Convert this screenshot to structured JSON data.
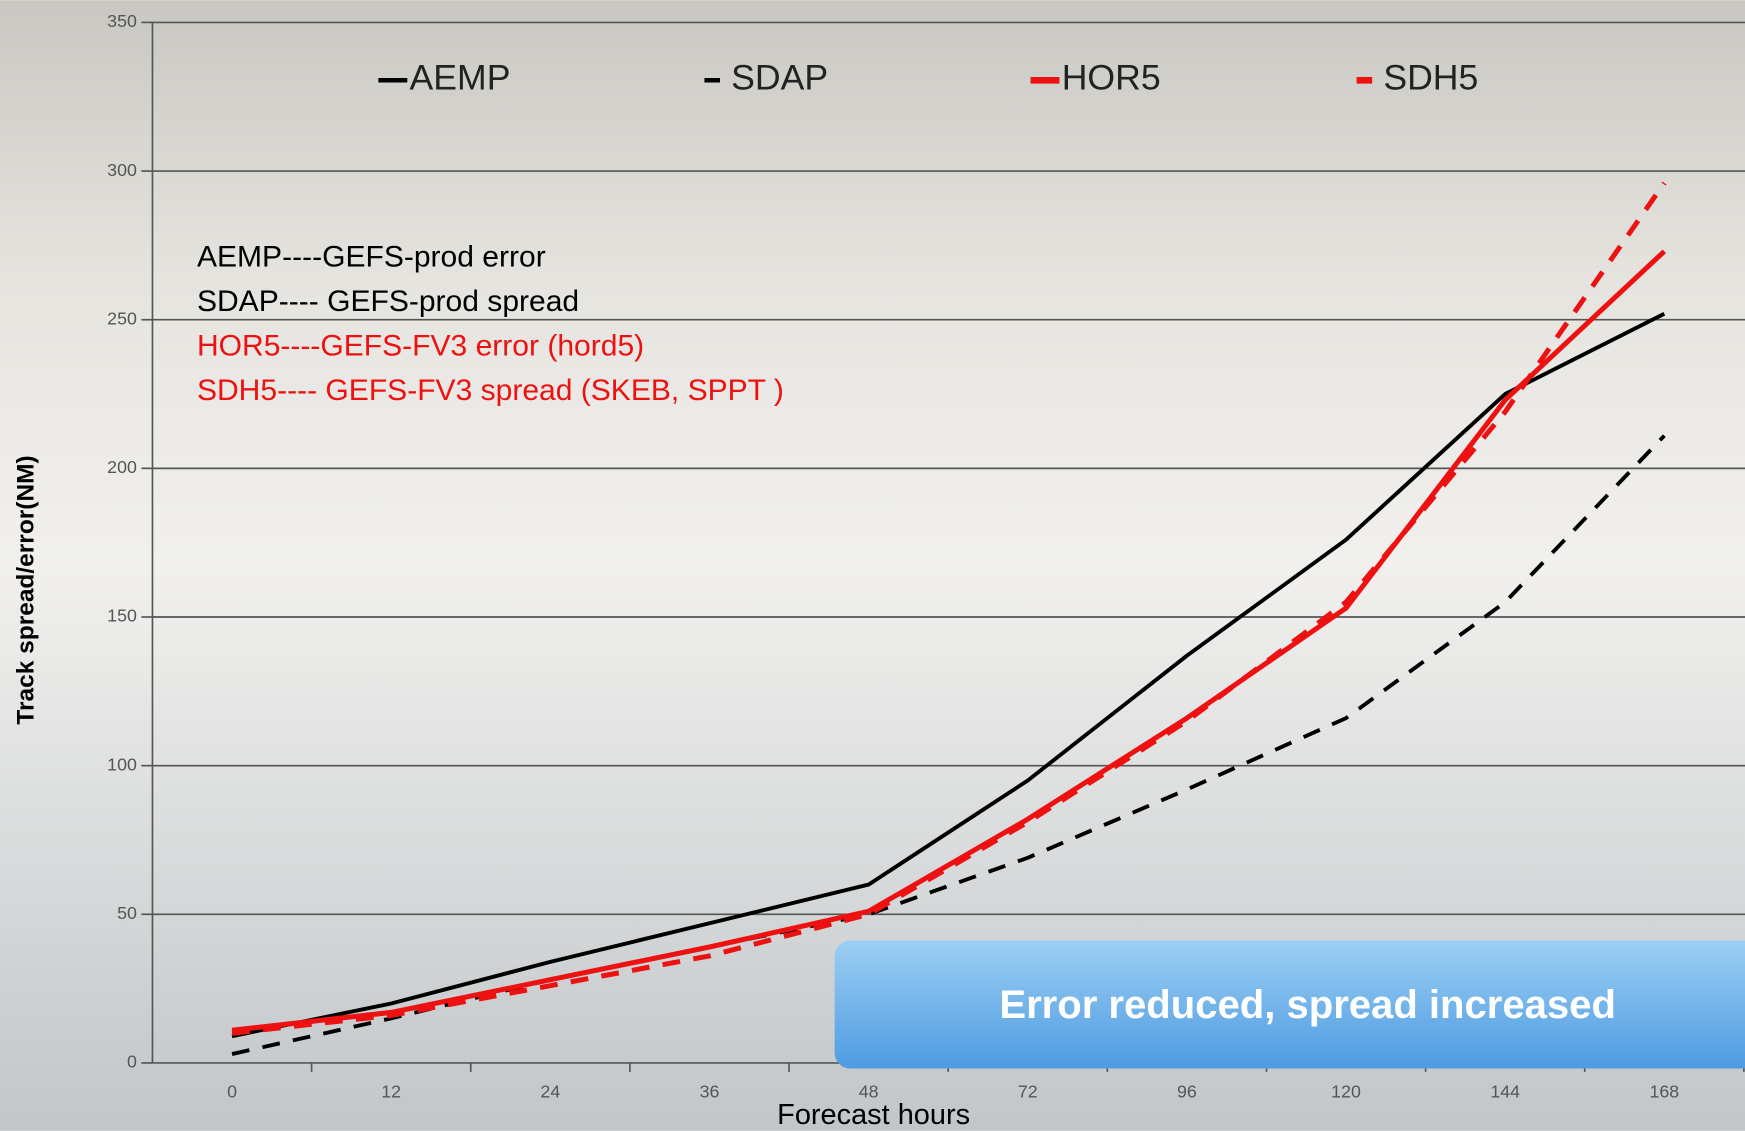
{
  "chart_data": {
    "type": "line",
    "x_label": "Forecast hours",
    "y_label": "Track spread/error(NM)",
    "categories": [
      "0",
      "12",
      "24",
      "36",
      "48",
      "72",
      "96",
      "120",
      "144",
      "168"
    ],
    "series": [
      {
        "name": "AEMP",
        "color": "#000000",
        "dashed": false,
        "values": [
          9,
          20,
          34,
          47,
          60,
          95,
          137,
          176,
          225,
          252
        ]
      },
      {
        "name": "SDAP",
        "color": "#000000",
        "dashed": true,
        "values": [
          3,
          15,
          28,
          39,
          50,
          69,
          92,
          116,
          155,
          211
        ]
      },
      {
        "name": "HOR5",
        "color": "#ee1111",
        "dashed": false,
        "values": [
          11,
          17,
          28,
          39,
          51,
          82,
          116,
          153,
          223,
          273
        ]
      },
      {
        "name": "SDH5",
        "color": "#ee1111",
        "dashed": true,
        "values": [
          10,
          16,
          26,
          36,
          50,
          81,
          115,
          155,
          219,
          296
        ]
      }
    ],
    "ylim": [
      0,
      350
    ],
    "yticks": [
      0,
      50,
      100,
      150,
      200,
      250,
      300,
      350
    ],
    "grid": true,
    "annotations": [
      {
        "text": "AEMP----GEFS-prod error",
        "color": "#000000"
      },
      {
        "text": "SDAP---- GEFS-prod spread",
        "color": "#000000"
      },
      {
        "text": "HOR5----GEFS-FV3 error (hord5)",
        "color": "#ee1111"
      },
      {
        "text": "SDH5---- GEFS-FV3 spread (SKEB, SPPT )",
        "color": "#ee1111"
      }
    ],
    "callout": "Error reduced, spread increased"
  }
}
